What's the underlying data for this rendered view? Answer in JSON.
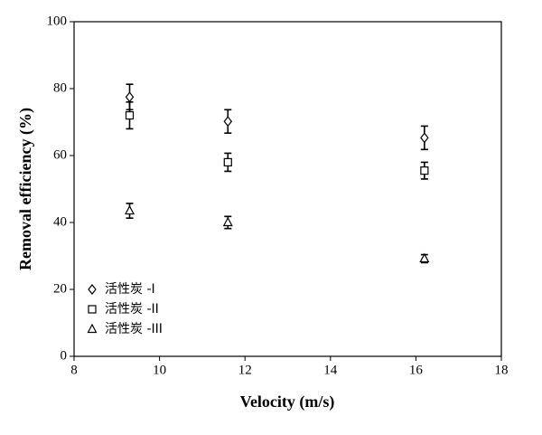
{
  "chart_data": {
    "type": "scatter",
    "xlabel": "Velocity (m/s)",
    "ylabel": "Removal efficiency (%)",
    "xlim": [
      8,
      18
    ],
    "xticks": [
      8,
      10,
      12,
      14,
      16,
      18
    ],
    "ylim": [
      0,
      100
    ],
    "yticks": [
      0,
      20,
      40,
      60,
      80,
      100
    ],
    "legend": "lower left",
    "series": [
      {
        "name": "活性炭 -I",
        "marker": "diamond",
        "color": "#000000",
        "x": [
          9.3,
          11.6,
          16.2
        ],
        "values": [
          77.5,
          70.2,
          65.3
        ],
        "errors": [
          3.8,
          3.5,
          3.5
        ]
      },
      {
        "name": "活性炭 -II",
        "marker": "square",
        "color": "#000000",
        "x": [
          9.3,
          11.6,
          16.2
        ],
        "values": [
          72,
          58,
          55.5
        ],
        "errors": [
          4,
          2.7,
          2.5
        ]
      },
      {
        "name": "活性炭 -III",
        "marker": "triangle",
        "color": "#000000",
        "x": [
          9.3,
          11.6,
          16.2
        ],
        "values": [
          43.5,
          40,
          29.2
        ],
        "errors": [
          2.2,
          1.8,
          1.2
        ]
      }
    ]
  }
}
